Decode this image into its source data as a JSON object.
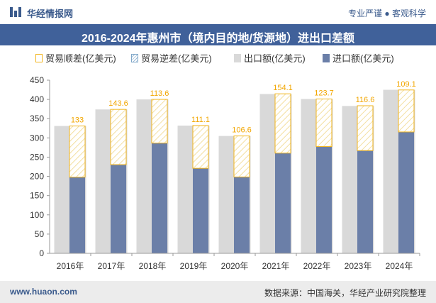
{
  "header": {
    "brand": "华经情报网",
    "tagline": "专业严谨 ● 客观科学"
  },
  "chart_data": {
    "type": "bar",
    "title": "2016-2024年惠州市（境内目的地/货源地）进出口差额",
    "categories": [
      "2016年",
      "2017年",
      "2018年",
      "2019年",
      "2020年",
      "2021年",
      "2022年",
      "2023年",
      "2024年"
    ],
    "series": [
      {
        "name": "贸易顺差(亿美元)",
        "values": [
          133,
          143.6,
          113.6,
          111.1,
          106.6,
          154.1,
          123.7,
          116.6,
          109.1
        ]
      },
      {
        "name": "贸易逆差(亿美元)",
        "values": [
          0,
          0,
          0,
          0,
          0,
          0,
          0,
          0,
          0
        ]
      },
      {
        "name": "出口额(亿美元)",
        "values": [
          331,
          374,
          400,
          332,
          305,
          414,
          401,
          383,
          425
        ]
      },
      {
        "name": "进口额(亿美元)",
        "values": [
          198,
          230.5,
          286.5,
          221,
          198.5,
          260.5,
          277.5,
          267,
          315.5
        ]
      }
    ],
    "ylim": [
      0,
      450
    ],
    "yticks": [
      0,
      50,
      100,
      150,
      200,
      250,
      300,
      350,
      400,
      450
    ],
    "legend_position": "top",
    "grid": false,
    "colors": {
      "surplus_border": "#f2b51d",
      "deficit_border": "#7fa7c9",
      "export": "#d9d9d9",
      "import": "#6b7fa8",
      "label": "#f2a600",
      "title_bg": "#40619a"
    }
  },
  "footer": {
    "website": "www.huaon.com",
    "source": "数据来源：中国海关，华经产业研究院整理"
  }
}
